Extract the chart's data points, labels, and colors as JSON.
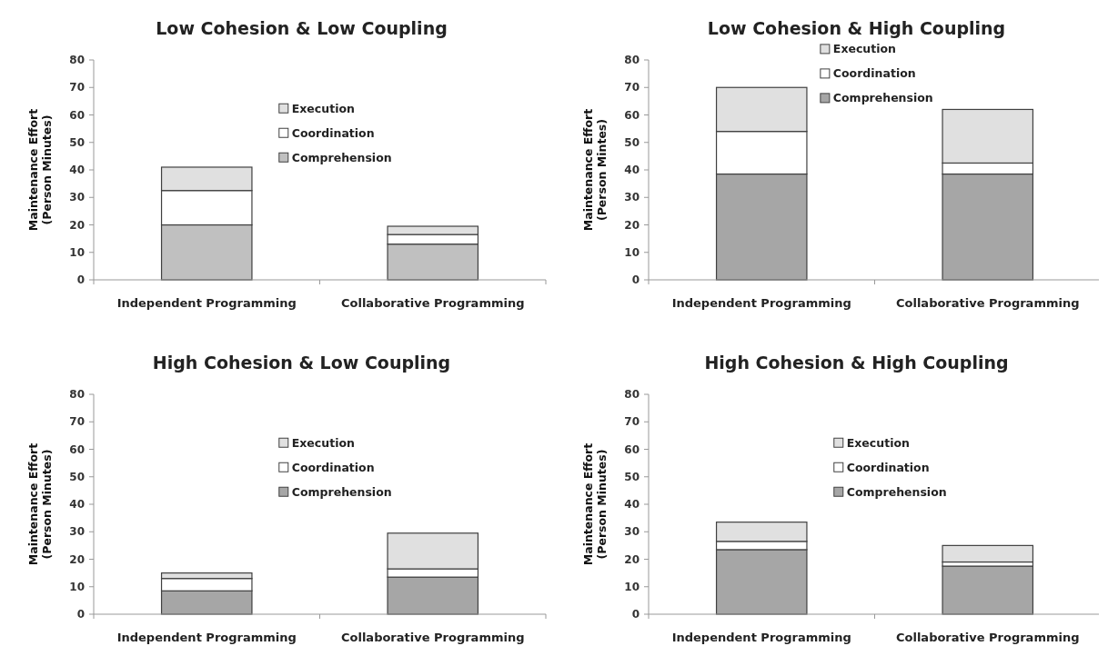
{
  "chart_data": [
    {
      "type": "bar",
      "title": "Low Cohesion  & Low Coupling",
      "ylabel": "Maintenance Effort\n(Person Minutes)",
      "categories": [
        "Independent Programming",
        "Collaborative Programming"
      ],
      "stacked": true,
      "legend": "center",
      "ylim": [
        0,
        80
      ],
      "yticks": [
        0,
        10,
        20,
        30,
        40,
        50,
        60,
        70,
        80
      ],
      "series": [
        {
          "name": "Comprehension",
          "color": "#c0c0c0",
          "values": [
            20,
            13
          ]
        },
        {
          "name": "Coordination",
          "color": "#ffffff",
          "values": [
            12.5,
            3.5
          ]
        },
        {
          "name": "Execution",
          "color": "#e0e0e0",
          "values": [
            8.5,
            3
          ]
        }
      ]
    },
    {
      "type": "bar",
      "title": "Low Cohesion  & High Coupling",
      "ylabel": "Maintenance Effort\n(Person Mintes)",
      "categories": [
        "Independent Programming",
        "Collaborative Programming"
      ],
      "stacked": true,
      "legend": "top right",
      "ylim": [
        0,
        80
      ],
      "yticks": [
        0,
        10,
        20,
        30,
        40,
        50,
        60,
        70,
        80
      ],
      "series": [
        {
          "name": "Comprehension",
          "color": "#a6a6a6",
          "values": [
            38.5,
            38.5
          ]
        },
        {
          "name": "Coordination",
          "color": "#ffffff",
          "values": [
            15.5,
            4
          ]
        },
        {
          "name": "Execution",
          "color": "#e0e0e0",
          "values": [
            16,
            19.5
          ]
        }
      ]
    },
    {
      "type": "bar",
      "title": "High Cohesion  & Low Coupling",
      "ylabel": "Maintenance Effort\n(Person Minutes)",
      "categories": [
        "Independent Programming",
        "Collaborative Programming"
      ],
      "stacked": true,
      "legend": "center",
      "ylim": [
        0,
        80
      ],
      "yticks": [
        0,
        10,
        20,
        30,
        40,
        50,
        60,
        70,
        80
      ],
      "series": [
        {
          "name": "Comprehension",
          "color": "#a6a6a6",
          "values": [
            8.5,
            13.5
          ]
        },
        {
          "name": "Coordination",
          "color": "#ffffff",
          "values": [
            4.5,
            3
          ]
        },
        {
          "name": "Execution",
          "color": "#e0e0e0",
          "values": [
            2,
            13
          ]
        }
      ]
    },
    {
      "type": "bar",
      "title": "High Cohesion  & High Coupling",
      "ylabel": "Maintenance Effort\n(Person Minutes)",
      "categories": [
        "Independent Programming",
        "Collaborative Programming"
      ],
      "stacked": true,
      "legend": "center",
      "ylim": [
        0,
        80
      ],
      "yticks": [
        0,
        10,
        20,
        30,
        40,
        50,
        60,
        70,
        80
      ],
      "series": [
        {
          "name": "Comprehension",
          "color": "#a6a6a6",
          "values": [
            23.5,
            17.5
          ]
        },
        {
          "name": "Coordination",
          "color": "#ffffff",
          "values": [
            3,
            1.5
          ]
        },
        {
          "name": "Execution",
          "color": "#e0e0e0",
          "values": [
            7,
            6
          ]
        }
      ]
    }
  ]
}
